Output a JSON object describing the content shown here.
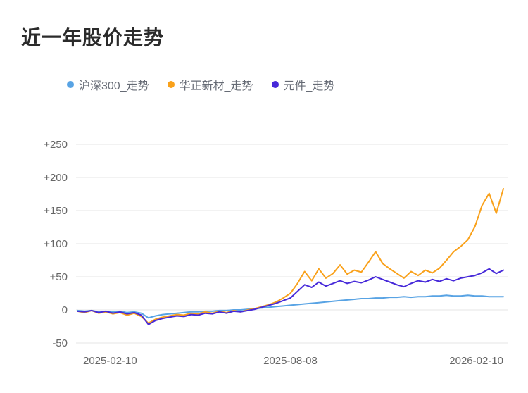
{
  "chart_data": {
    "type": "line",
    "title": "近一年股价走势",
    "xlabel": "",
    "ylabel": "",
    "ylim": [
      -50,
      250
    ],
    "grid": true,
    "legend_position": "top-left",
    "x_tick_labels": [
      "2025-02-10",
      "2025-08-08",
      "2026-02-10"
    ],
    "y_ticks": [
      -50,
      0,
      50,
      100,
      150,
      200,
      250
    ],
    "y_tick_labels": [
      "-50",
      "0",
      "+50",
      "+100",
      "+150",
      "+200",
      "+250"
    ],
    "series": [
      {
        "name": "沪深300_走势",
        "color": "#58a3e4",
        "values": [
          -1,
          -2,
          -1,
          -3,
          -2,
          -3,
          -2,
          -4,
          -3,
          -5,
          -12,
          -9,
          -7,
          -6,
          -5,
          -4,
          -3,
          -3,
          -2,
          -2,
          -1,
          -1,
          0,
          0,
          1,
          2,
          3,
          4,
          5,
          6,
          7,
          8,
          9,
          10,
          11,
          12,
          13,
          14,
          15,
          16,
          17,
          17,
          18,
          18,
          19,
          19,
          20,
          19,
          20,
          20,
          21,
          21,
          22,
          21,
          21,
          22,
          21,
          21,
          20,
          20,
          20
        ]
      },
      {
        "name": "华正新材_走势",
        "color": "#f9a11b",
        "values": [
          -2,
          -4,
          -1,
          -5,
          -3,
          -6,
          -4,
          -8,
          -5,
          -10,
          -20,
          -14,
          -11,
          -9,
          -7,
          -8,
          -5,
          -6,
          -3,
          -5,
          -2,
          -4,
          -1,
          -3,
          0,
          2,
          5,
          8,
          12,
          18,
          25,
          40,
          58,
          44,
          62,
          48,
          55,
          68,
          54,
          60,
          57,
          72,
          88,
          70,
          62,
          55,
          48,
          58,
          52,
          60,
          56,
          63,
          75,
          88,
          96,
          106,
          126,
          158,
          176,
          146,
          183
        ]
      },
      {
        "name": "元件_走势",
        "color": "#4629d9",
        "values": [
          -2,
          -3,
          -1,
          -4,
          -2,
          -5,
          -3,
          -6,
          -4,
          -8,
          -22,
          -16,
          -13,
          -11,
          -9,
          -10,
          -7,
          -8,
          -5,
          -6,
          -3,
          -5,
          -2,
          -3,
          -1,
          1,
          4,
          7,
          10,
          14,
          18,
          28,
          38,
          34,
          42,
          36,
          40,
          44,
          40,
          43,
          41,
          45,
          50,
          46,
          42,
          38,
          35,
          40,
          44,
          42,
          46,
          43,
          47,
          44,
          48,
          50,
          52,
          56,
          62,
          55,
          60
        ]
      }
    ]
  }
}
